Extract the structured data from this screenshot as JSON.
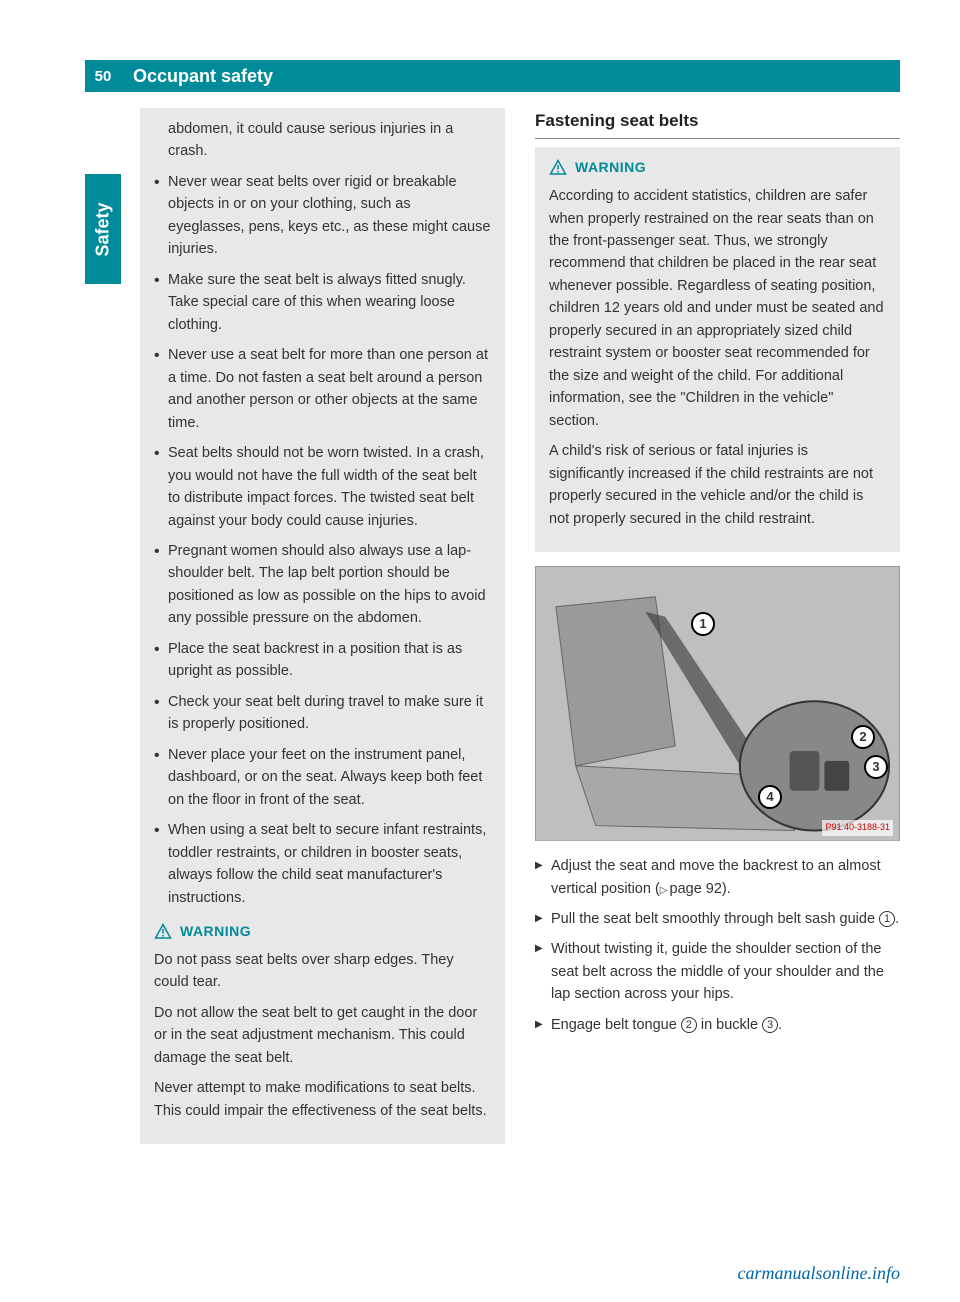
{
  "page_number": "50",
  "header_title": "Occupant safety",
  "side_tab": "Safety",
  "left_column": {
    "warning1_intro": "abdomen, it could cause serious injuries in a crash.",
    "bullets": [
      "Never wear seat belts over rigid or breakable objects in or on your clothing, such as eyeglasses, pens, keys etc., as these might cause injuries.",
      "Make sure the seat belt is always fitted snugly. Take special care of this when wearing loose clothing.",
      "Never use a seat belt for more than one person at a time. Do not fasten a seat belt around a person and another person or other objects at the same time.",
      "Seat belts should not be worn twisted. In a crash, you would not have the full width of the seat belt to distribute impact forces. The twisted seat belt against your body could cause injuries.",
      "Pregnant women should also always use a lap-shoulder belt. The lap belt portion should be positioned as low as possible on the hips to avoid any possible pressure on the abdomen.",
      "Place the seat backrest in a position that is as upright as possible.",
      "Check your seat belt during travel to make sure it is properly positioned.",
      "Never place your feet on the instrument panel, dashboard, or on the seat. Always keep both feet on the floor in front of the seat.",
      "When using a seat belt to secure infant restraints, toddler restraints, or children in booster seats, always follow the child seat manufacturer's instructions."
    ],
    "warning_label": "WARNING",
    "warning2_paragraphs": [
      "Do not pass seat belts over sharp edges. They could tear.",
      "Do not allow the seat belt to get caught in the door or in the seat adjustment mechanism. This could damage the seat belt.",
      "Never attempt to make modifications to seat belts. This could impair the effectiveness of the seat belts."
    ]
  },
  "right_column": {
    "section_title": "Fastening seat belts",
    "warning_label": "WARNING",
    "warning_paragraphs": [
      "According to accident statistics, children are safer when properly restrained on the rear seats than on the front-passenger seat. Thus, we strongly recommend that children be placed in the rear seat whenever possible. Regardless of seating position, children 12 years old and under must be seated and properly secured in an appropriately sized child restraint system or booster seat recommended for the size and weight of the child. For additional information, see the \"Children in the vehicle\" section.",
      "A child's risk of serious or fatal injuries is significantly increased if the child restraints are not properly secured in the vehicle and/or the child is not properly secured in the child restraint."
    ],
    "figure_label": "P91.40-3188-31",
    "callouts": [
      "1",
      "2",
      "3",
      "4"
    ],
    "steps": [
      {
        "text_before": "Adjust the seat and move the backrest to an almost vertical position (",
        "page_ref": "page 92",
        "text_after": ")."
      },
      {
        "text_before": "Pull the seat belt smoothly through belt sash guide ",
        "circled": "1",
        "text_after": "."
      },
      {
        "text_before": "Without twisting it, guide the shoulder section of the seat belt across the middle of your shoulder and the lap section across your hips."
      },
      {
        "text_before": "Engage belt tongue ",
        "circled": "2",
        "mid_text": " in buckle ",
        "circled2": "3",
        "text_after": "."
      }
    ]
  },
  "footer_link": "carmanualsonline.info",
  "colors": {
    "teal": "#008b9a",
    "warning_bg": "#e8e8e8",
    "text": "#333333"
  }
}
